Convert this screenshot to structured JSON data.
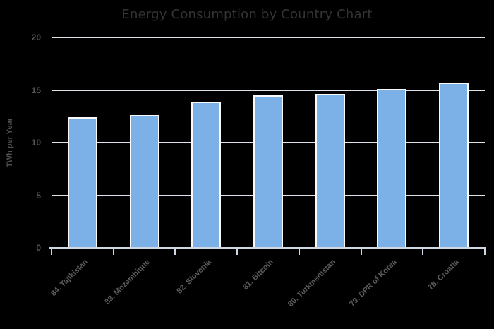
{
  "chart_data": {
    "type": "bar",
    "title": "Energy Consumption by Country Chart",
    "xlabel": "",
    "ylabel": "TWh per Year",
    "categories": [
      "84. Tajikistan",
      "83. Mozambique",
      "82. Slovenia",
      "81. Bitcoin",
      "80. Turkmenistan",
      "79. DPR of Korea",
      "78. Croatia"
    ],
    "values": [
      12.4,
      12.6,
      13.9,
      14.5,
      14.6,
      15.1,
      15.7
    ],
    "ylim": [
      0,
      20
    ],
    "yticks": [
      0,
      5,
      10,
      15,
      20
    ],
    "grid": true,
    "legend": false,
    "colors": {
      "background": "#000000",
      "bar_fill": "#7cb1e8",
      "bar_border": "#fafafa",
      "gridline": "#dfe2ea",
      "axis_line": "#cfd6e4",
      "title_text": "#343434",
      "axis_title_text": "#4f4f4f",
      "y_tick_label_text": "#555555",
      "x_label_text": "#5d5d5d"
    }
  }
}
